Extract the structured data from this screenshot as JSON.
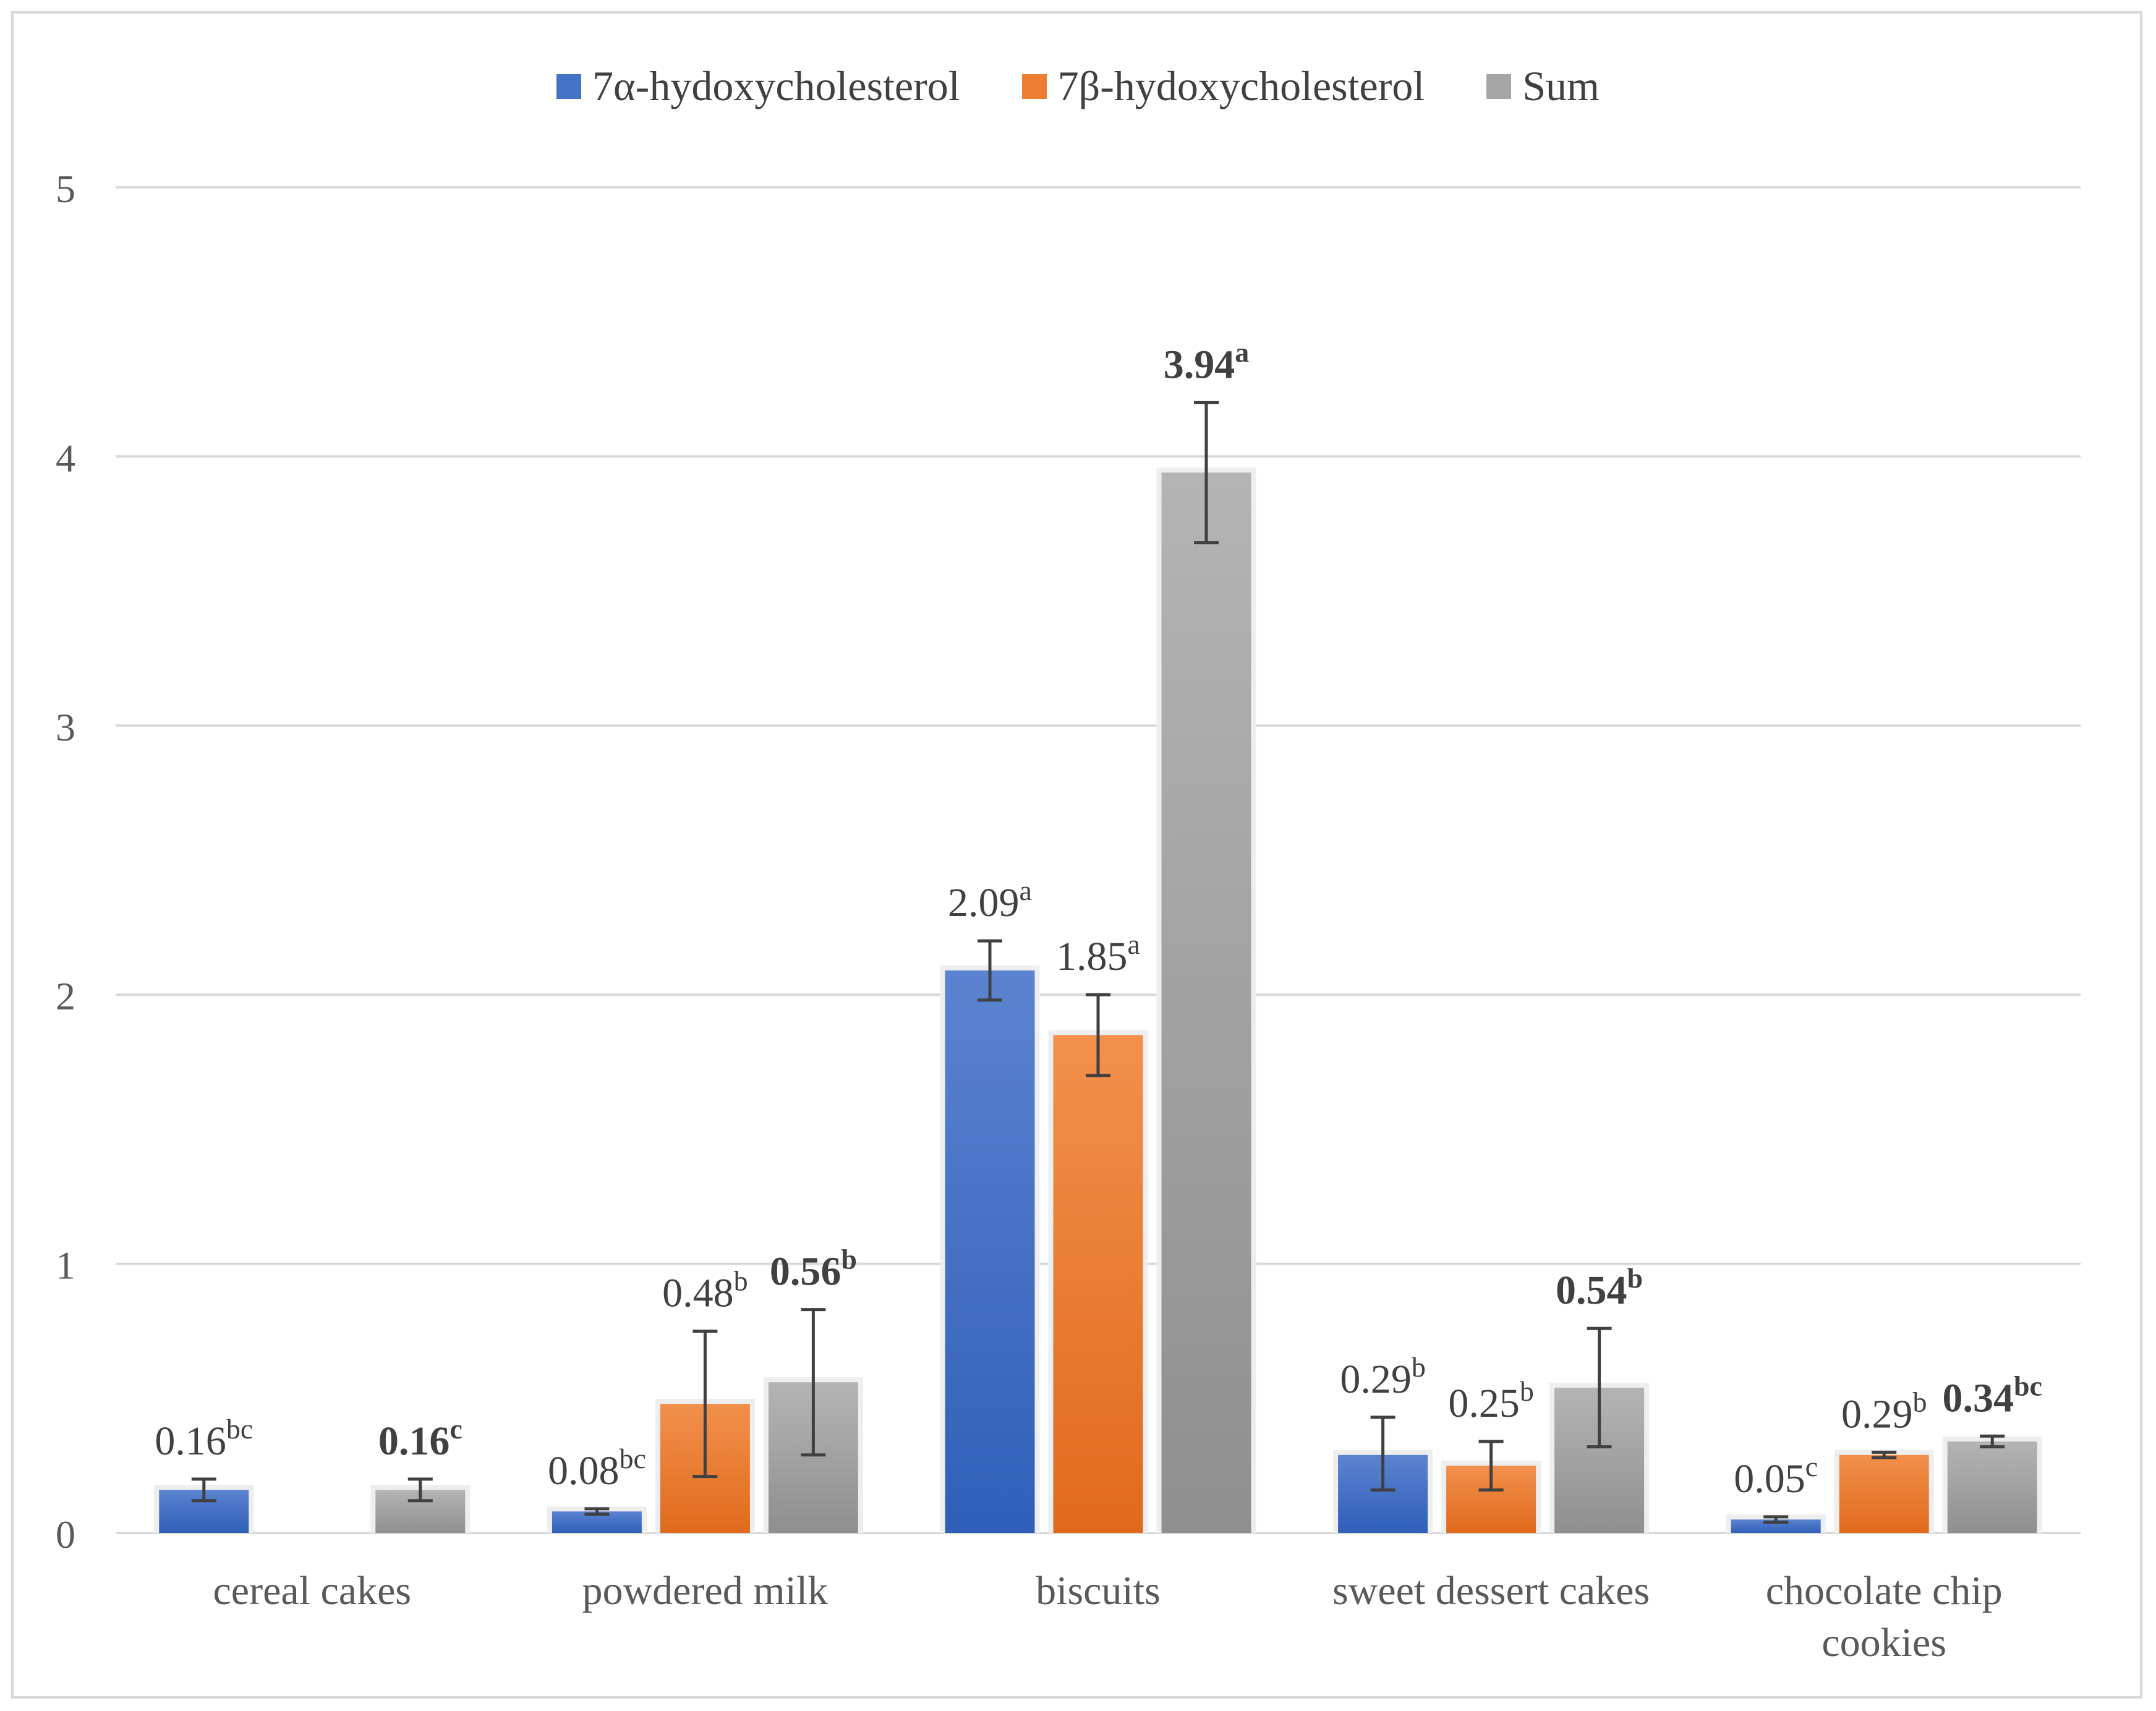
{
  "chart_data": {
    "type": "bar",
    "title": "",
    "xlabel": "",
    "ylabel": "",
    "ylim": [
      0,
      5
    ],
    "yticks": [
      0,
      1,
      2,
      3,
      4,
      5
    ],
    "grid": true,
    "legend_position": "top-center",
    "categories": [
      "cereal cakes",
      "powdered milk",
      "biscuits",
      "sweet dessert cakes",
      "chocolate chip cookies"
    ],
    "category_lines": [
      [
        "cereal cakes"
      ],
      [
        "powdered milk"
      ],
      [
        "biscuits"
      ],
      [
        "sweet dessert cakes"
      ],
      [
        "chocolate chip",
        "cookies"
      ]
    ],
    "series": [
      {
        "name": "7α-hydoxycholesterol",
        "color": "#4472c4",
        "values": [
          0.16,
          0.08,
          2.09,
          0.29,
          0.05
        ],
        "err_low": [
          0.12,
          0.07,
          1.98,
          0.16,
          0.04
        ],
        "err_high": [
          0.2,
          0.09,
          2.2,
          0.43,
          0.06
        ],
        "labels": [
          "0.16",
          "0.08",
          "2.09",
          "0.29",
          "0.05"
        ],
        "superscripts": [
          "bc",
          "bc",
          "a",
          "b",
          "c"
        ],
        "bold": false
      },
      {
        "name": "7β-hydoxycholesterol",
        "color": "#ed7d31",
        "values": [
          null,
          0.48,
          1.85,
          0.25,
          0.29
        ],
        "err_low": [
          null,
          0.21,
          1.7,
          0.16,
          0.28
        ],
        "err_high": [
          null,
          0.75,
          2.0,
          0.34,
          0.3
        ],
        "labels": [
          "",
          "0.48",
          "1.85",
          "0.25",
          "0.29"
        ],
        "superscripts": [
          "",
          "b",
          "a",
          "b",
          "b"
        ],
        "bold": false
      },
      {
        "name": "Sum",
        "color": "#a5a5a5",
        "values": [
          0.16,
          0.56,
          3.94,
          0.54,
          0.34
        ],
        "err_low": [
          0.12,
          0.29,
          3.68,
          0.32,
          0.32
        ],
        "err_high": [
          0.2,
          0.83,
          4.2,
          0.76,
          0.36
        ],
        "labels": [
          "0.16",
          "0.56",
          "3.94",
          "0.54",
          "0.34"
        ],
        "superscripts": [
          "c",
          "b",
          "a",
          "b",
          "bc"
        ],
        "bold": true
      }
    ]
  }
}
